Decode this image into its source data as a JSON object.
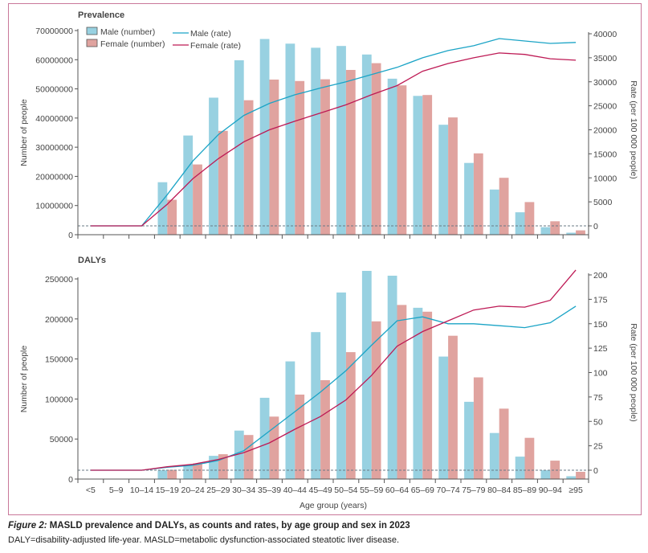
{
  "caption": {
    "figure_label": "Figure 2:",
    "title": "MASLD prevalence and DALYs, as counts and rates, by age group and sex in 2023",
    "note": "DALY=disability-adjusted life-year. MASLD=metabolic dysfunction-associated steatotic liver disease."
  },
  "colors": {
    "male_bar": "#98d1e1",
    "female_bar": "#e0a39f",
    "male_line": "#1ba4c6",
    "female_line": "#be1a55",
    "frame": "#c9789a",
    "axis": "#555555"
  },
  "chart_data": [
    {
      "type": "bar",
      "title": "Prevalence",
      "categories": [
        "<5",
        "5–9",
        "10–14",
        "15–19",
        "20–24",
        "25–29",
        "30–34",
        "35–39",
        "40–44",
        "45–49",
        "50–54",
        "55–59",
        "60–64",
        "65–69",
        "70–74",
        "75–79",
        "80–84",
        "85–89",
        "90–94",
        "≥95"
      ],
      "ylabel": "Number of people",
      "y2label": "Rate (per 100 000 people)",
      "ylim": [
        0,
        70000000
      ],
      "yticks": [
        0,
        10000000,
        20000000,
        30000000,
        40000000,
        50000000,
        60000000,
        70000000
      ],
      "ytick_labels": [
        "0",
        "10000000",
        "20000000",
        "30000000",
        "40000000",
        "50000000",
        "60000000",
        "70000000"
      ],
      "y2lim": [
        0,
        40000
      ],
      "y2ticks": [
        0,
        5000,
        10000,
        15000,
        20000,
        25000,
        30000,
        35000,
        40000
      ],
      "y2tick_labels": [
        "0",
        "5000",
        "10000",
        "15000",
        "20000",
        "25000",
        "30000",
        "35000",
        "40000"
      ],
      "legend": [
        "Male (number)",
        "Female (number)",
        "Male (rate)",
        "Female (rate)"
      ],
      "legend_position": "top-left",
      "series": [
        {
          "name": "Male (number)",
          "kind": "bar",
          "axis": "left",
          "values": [
            0,
            0,
            0,
            18000000,
            34000000,
            47000000,
            59800000,
            67100000,
            65500000,
            64100000,
            64700000,
            61800000,
            53500000,
            47600000,
            37700000,
            24600000,
            15500000,
            7700000,
            2600000,
            700000
          ]
        },
        {
          "name": "Female (number)",
          "kind": "bar",
          "axis": "left",
          "values": [
            0,
            0,
            0,
            12000000,
            24100000,
            35600000,
            46100000,
            53200000,
            52700000,
            53300000,
            56500000,
            58800000,
            51200000,
            47900000,
            40200000,
            27900000,
            19500000,
            11200000,
            4600000,
            1500000
          ]
        },
        {
          "name": "Male (rate)",
          "kind": "line",
          "axis": "right",
          "values": [
            0,
            0,
            0,
            6500,
            13500,
            19000,
            23000,
            25500,
            27300,
            28700,
            30000,
            31500,
            33000,
            35000,
            36500,
            37500,
            39000,
            38500,
            38000,
            38200
          ]
        },
        {
          "name": "Female (rate)",
          "kind": "line",
          "axis": "right",
          "values": [
            0,
            0,
            0,
            4500,
            9800,
            14000,
            17500,
            20000,
            21800,
            23500,
            25200,
            27300,
            29200,
            32200,
            33800,
            35000,
            36000,
            35700,
            34800,
            34500
          ]
        }
      ]
    },
    {
      "type": "bar",
      "title": "DALYs",
      "categories": [
        "<5",
        "5–9",
        "10–14",
        "15–19",
        "20–24",
        "25–29",
        "30–34",
        "35–39",
        "40–44",
        "45–49",
        "50–54",
        "55–59",
        "60–64",
        "65–69",
        "70–74",
        "75–79",
        "80–84",
        "85–89",
        "90–94",
        "≥95"
      ],
      "xlabel": "Age group (years)",
      "ylabel": "Number of people",
      "y2label": "Rate (per 100 000 people)",
      "ylim": [
        0,
        250000
      ],
      "yticks": [
        0,
        50000,
        100000,
        150000,
        200000,
        250000
      ],
      "ytick_labels": [
        "0",
        "50000",
        "100000",
        "150000",
        "200000",
        "250000"
      ],
      "y2lim": [
        0,
        200
      ],
      "y2ticks": [
        0,
        25,
        50,
        75,
        100,
        125,
        150,
        175,
        200
      ],
      "y2tick_labels": [
        "0",
        "25",
        "50",
        "75",
        "100",
        "125",
        "150",
        "175",
        "200"
      ],
      "series": [
        {
          "name": "Male (number)",
          "kind": "bar",
          "axis": "left",
          "values": [
            0,
            0,
            0,
            11000,
            17500,
            29000,
            60500,
            101500,
            147000,
            183500,
            233000,
            260000,
            254000,
            214000,
            153000,
            96500,
            57500,
            28000,
            11000,
            3500
          ]
        },
        {
          "name": "Female (number)",
          "kind": "bar",
          "axis": "left",
          "values": [
            0,
            0,
            0,
            11500,
            19500,
            31000,
            55000,
            78000,
            105500,
            123500,
            158500,
            197000,
            217500,
            209000,
            179000,
            127000,
            88000,
            51500,
            23000,
            9000
          ]
        },
        {
          "name": "Male (rate)",
          "kind": "line",
          "axis": "right",
          "values": [
            0,
            0,
            0,
            3,
            5,
            10,
            20,
            40,
            60,
            80,
            102,
            128,
            153,
            157,
            150,
            150,
            148,
            146,
            151,
            168
          ]
        },
        {
          "name": "Female (rate)",
          "kind": "line",
          "axis": "right",
          "values": [
            0,
            0,
            0,
            3.5,
            6,
            11,
            18,
            28,
            42,
            55,
            72,
            97,
            127,
            142,
            153,
            164,
            168,
            167,
            174,
            205
          ]
        }
      ]
    }
  ]
}
